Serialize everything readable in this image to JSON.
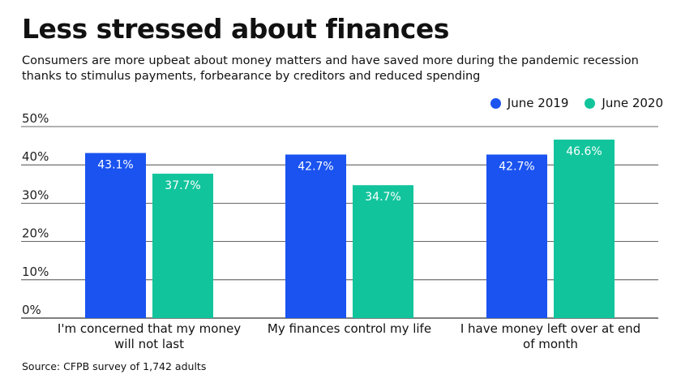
{
  "title": "Less stressed about finances",
  "subtitle": "Consumers are more upbeat about money matters and have saved more during the pandemic recession thanks to stimulus payments, forbearance by creditors and reduced spending",
  "source": "Source: CFPB survey of 1,742 adults",
  "colors": {
    "june2019": "#1a53f0",
    "june2020": "#12c49c",
    "grid": "#333333"
  },
  "chart_data": {
    "type": "bar",
    "categories": [
      [
        "I'm concerned that my money",
        "will not last"
      ],
      [
        "My finances control my life"
      ],
      [
        "I have money left over at end",
        "of month"
      ]
    ],
    "series": [
      {
        "name": "June 2019",
        "values": [
          43.1,
          42.7,
          42.7
        ],
        "labels": [
          "43.1%",
          "42.7%",
          "42.7%"
        ]
      },
      {
        "name": "June 2020",
        "values": [
          37.7,
          34.7,
          46.6
        ],
        "labels": [
          "37.7%",
          "34.7%",
          "46.6%"
        ]
      }
    ],
    "ylim": [
      0,
      50
    ],
    "yticks": [
      "0%",
      "10%",
      "20%",
      "30%",
      "40%",
      "50%"
    ],
    "grid": true,
    "legend": "top-right",
    "xlabel": "",
    "ylabel": ""
  }
}
